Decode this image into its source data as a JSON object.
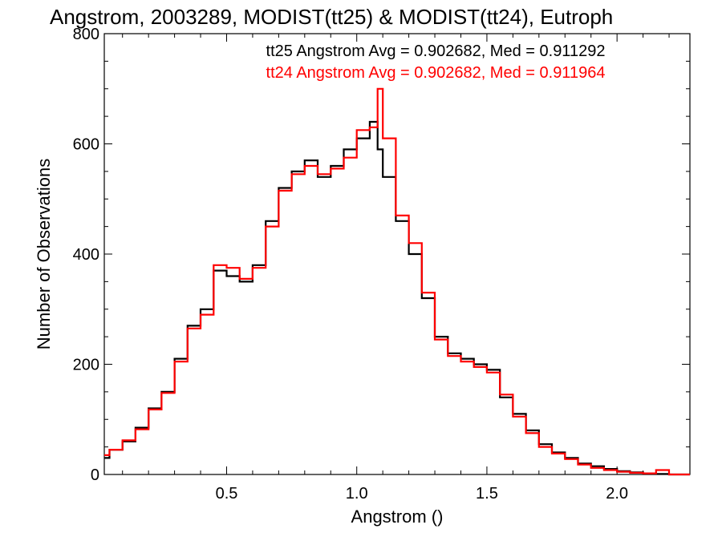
{
  "chart_data": {
    "type": "line",
    "title": "Angstrom, 2003289, MODIST(tt25) & MODIST(tt24), Eutroph",
    "xlabel": "Angstrom ()",
    "ylabel": "Number of Observations",
    "xlim": [
      0.03,
      2.28
    ],
    "ylim": [
      0,
      800
    ],
    "x_ticks": [
      0.5,
      1.0,
      1.5,
      2.0
    ],
    "x_tick_labels": [
      "0.5",
      "1.0",
      "1.5",
      "2.0"
    ],
    "y_ticks": [
      0,
      200,
      400,
      600,
      800
    ],
    "y_tick_labels": [
      "0",
      "200",
      "400",
      "600",
      "800"
    ],
    "grid": false,
    "series": [
      {
        "name": "tt25",
        "color": "#000000",
        "annotation": "tt25 Angstrom Avg = 0.902682, Med = 0.911292",
        "x": [
          0.03,
          0.05,
          0.1,
          0.15,
          0.2,
          0.25,
          0.3,
          0.35,
          0.4,
          0.45,
          0.5,
          0.55,
          0.6,
          0.65,
          0.7,
          0.75,
          0.8,
          0.85,
          0.9,
          0.95,
          1.0,
          1.05,
          1.08,
          1.1,
          1.15,
          1.2,
          1.25,
          1.3,
          1.35,
          1.4,
          1.45,
          1.5,
          1.55,
          1.6,
          1.65,
          1.7,
          1.75,
          1.8,
          1.85,
          1.9,
          1.95,
          2.0,
          2.05,
          2.1,
          2.15,
          2.2
        ],
        "values": [
          30,
          45,
          60,
          85,
          120,
          150,
          210,
          270,
          300,
          370,
          360,
          350,
          380,
          460,
          520,
          550,
          570,
          540,
          560,
          590,
          610,
          640,
          590,
          540,
          460,
          400,
          320,
          250,
          220,
          210,
          200,
          190,
          140,
          110,
          80,
          55,
          40,
          30,
          20,
          15,
          10,
          6,
          4,
          2,
          1,
          0
        ]
      },
      {
        "name": "tt24",
        "color": "#ff0000",
        "annotation": "tt24 Angstrom Avg = 0.902682, Med = 0.911964",
        "x": [
          0.03,
          0.05,
          0.1,
          0.15,
          0.2,
          0.25,
          0.3,
          0.35,
          0.4,
          0.45,
          0.5,
          0.55,
          0.6,
          0.65,
          0.7,
          0.75,
          0.8,
          0.85,
          0.9,
          0.95,
          1.0,
          1.05,
          1.08,
          1.1,
          1.15,
          1.2,
          1.25,
          1.3,
          1.35,
          1.4,
          1.45,
          1.5,
          1.55,
          1.6,
          1.65,
          1.7,
          1.75,
          1.8,
          1.85,
          1.9,
          1.95,
          2.0,
          2.05,
          2.1,
          2.15,
          2.2
        ],
        "values": [
          35,
          45,
          62,
          82,
          118,
          148,
          205,
          265,
          290,
          380,
          375,
          355,
          375,
          450,
          515,
          545,
          560,
          545,
          555,
          575,
          625,
          630,
          700,
          610,
          470,
          420,
          330,
          245,
          215,
          205,
          195,
          185,
          145,
          105,
          75,
          50,
          38,
          28,
          18,
          12,
          8,
          5,
          3,
          2,
          8,
          0
        ]
      }
    ]
  }
}
